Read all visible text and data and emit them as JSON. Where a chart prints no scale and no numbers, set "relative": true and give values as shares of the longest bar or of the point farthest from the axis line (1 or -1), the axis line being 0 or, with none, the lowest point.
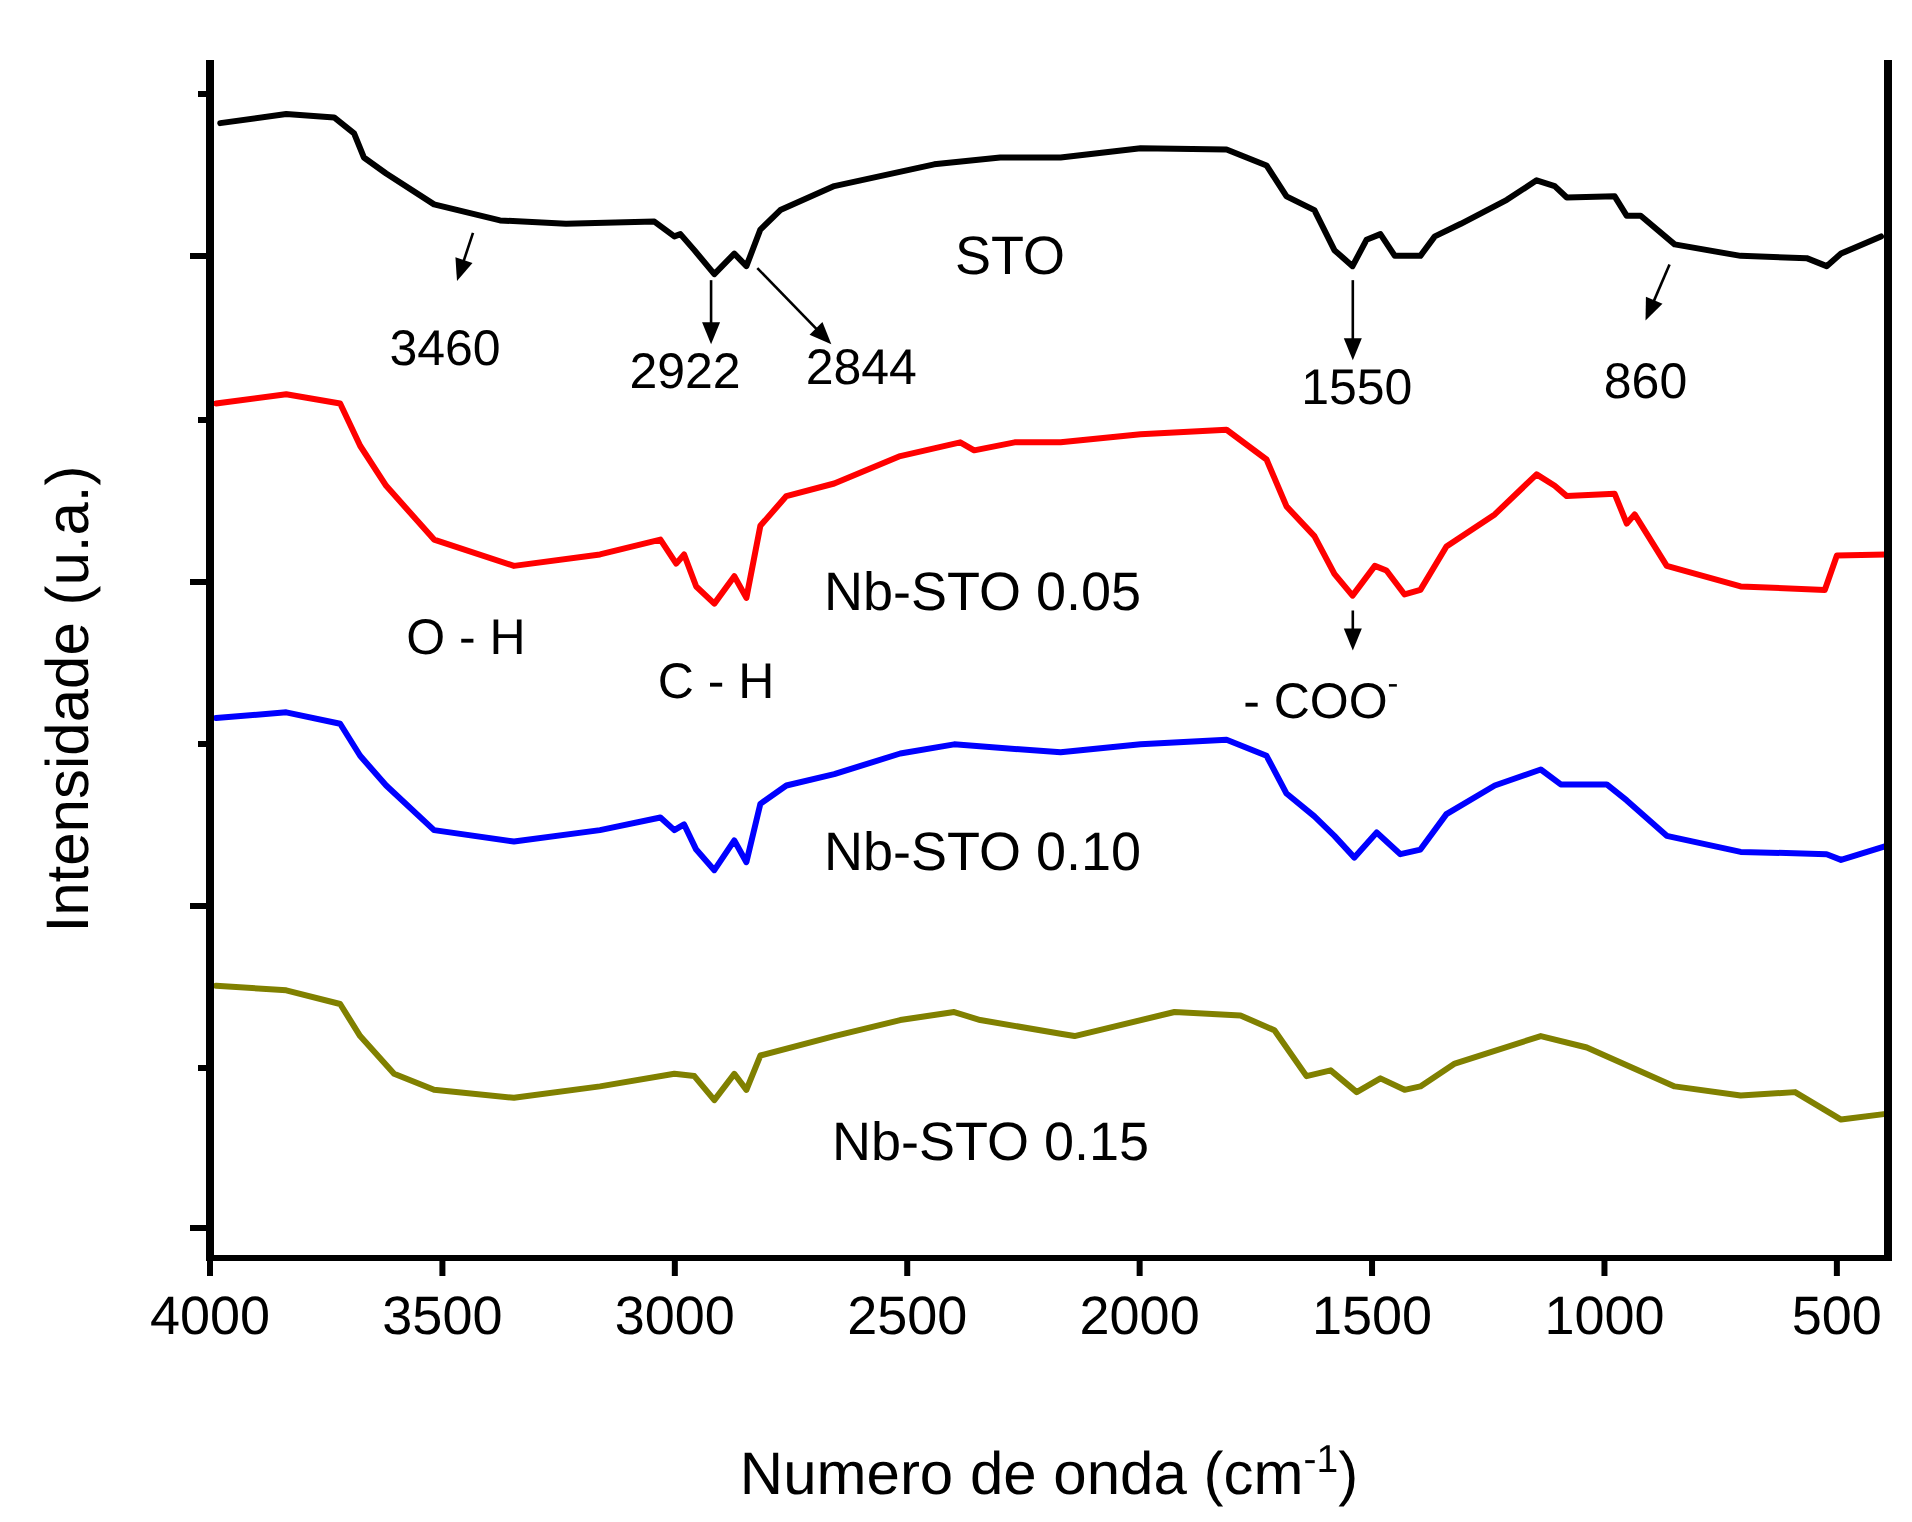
{
  "chart_data": {
    "type": "line",
    "relative": true,
    "xlabel": "Numero de onda (cm$^{-1}$)",
    "ylabel": "Intensidade (u.a.)",
    "xlim": [
      4000,
      390
    ],
    "xticks": [
      4000,
      3500,
      3000,
      2500,
      2000,
      1500,
      1000,
      500
    ],
    "grid": false,
    "marker": "none",
    "line_style": "solid",
    "series": [
      {
        "name": "STO",
        "color": "#000000",
        "x": [
          3978,
          3836,
          3733,
          3690,
          3669,
          3621,
          3518,
          3376,
          3234,
          3044,
          3001,
          2988,
          2958,
          2915,
          2872,
          2846,
          2816,
          2773,
          2657,
          2442,
          2300,
          2170,
          1998,
          1813,
          1727,
          1684,
          1624,
          1581,
          1542,
          1512,
          1482,
          1451,
          1396,
          1365,
          1309,
          1210,
          1146,
          1107,
          1081,
          978,
          952,
          922,
          849,
          707,
          565,
          522,
          491,
          405
        ],
        "values": [
          0.992,
          1.0,
          0.997,
          0.983,
          0.962,
          0.948,
          0.921,
          0.907,
          0.904,
          0.906,
          0.893,
          0.895,
          0.881,
          0.86,
          0.878,
          0.867,
          0.899,
          0.916,
          0.937,
          0.956,
          0.962,
          0.962,
          0.97,
          0.969,
          0.955,
          0.928,
          0.916,
          0.881,
          0.867,
          0.89,
          0.895,
          0.876,
          0.876,
          0.893,
          0.904,
          0.925,
          0.942,
          0.937,
          0.927,
          0.928,
          0.911,
          0.911,
          0.886,
          0.876,
          0.874,
          0.867,
          0.878,
          0.893
        ]
      },
      {
        "name": "Nb-STO 0.05",
        "color": "#ff0000",
        "x": [
          3987,
          3836,
          3720,
          3677,
          3621,
          3518,
          3346,
          3161,
          3031,
          2997,
          2980,
          2954,
          2915,
          2872,
          2846,
          2816,
          2760,
          2657,
          2515,
          2386,
          2356,
          2269,
          2170,
          1998,
          1813,
          1727,
          1684,
          1624,
          1581,
          1542,
          1494,
          1469,
          1430,
          1396,
          1340,
          1236,
          1146,
          1107,
          1081,
          978,
          952,
          935,
          866,
          707,
          526,
          500,
          395
        ],
        "values": [
          0.747,
          0.755,
          0.747,
          0.71,
          0.675,
          0.628,
          0.605,
          0.615,
          0.628,
          0.607,
          0.615,
          0.587,
          0.572,
          0.596,
          0.577,
          0.64,
          0.666,
          0.677,
          0.701,
          0.713,
          0.706,
          0.713,
          0.713,
          0.72,
          0.724,
          0.698,
          0.657,
          0.631,
          0.598,
          0.579,
          0.605,
          0.601,
          0.58,
          0.584,
          0.622,
          0.65,
          0.685,
          0.675,
          0.666,
          0.668,
          0.642,
          0.65,
          0.605,
          0.587,
          0.584,
          0.614,
          0.615
        ]
      },
      {
        "name": "Nb-STO 0.10",
        "color": "#0000ff",
        "x": [
          3987,
          3836,
          3720,
          3677,
          3621,
          3518,
          3346,
          3161,
          3031,
          3001,
          2980,
          2954,
          2915,
          2872,
          2846,
          2816,
          2760,
          2657,
          2515,
          2399,
          2170,
          1998,
          1813,
          1727,
          1684,
          1624,
          1581,
          1538,
          1490,
          1439,
          1396,
          1340,
          1236,
          1137,
          1094,
          995,
          952,
          866,
          707,
          522,
          491,
          395
        ],
        "values": [
          0.472,
          0.477,
          0.467,
          0.439,
          0.413,
          0.374,
          0.364,
          0.374,
          0.385,
          0.374,
          0.379,
          0.357,
          0.339,
          0.365,
          0.346,
          0.397,
          0.413,
          0.423,
          0.441,
          0.449,
          0.442,
          0.449,
          0.453,
          0.439,
          0.406,
          0.386,
          0.369,
          0.35,
          0.372,
          0.353,
          0.357,
          0.388,
          0.413,
          0.427,
          0.414,
          0.414,
          0.4,
          0.369,
          0.355,
          0.353,
          0.348,
          0.36
        ]
      },
      {
        "name": "Nb-STO 0.15",
        "color": "#808000",
        "x": [
          3987,
          3836,
          3720,
          3677,
          3604,
          3518,
          3346,
          3161,
          3001,
          2958,
          2915,
          2872,
          2846,
          2816,
          2657,
          2515,
          2399,
          2343,
          2170,
          2140,
          1925,
          1783,
          1710,
          1641,
          1589,
          1533,
          1482,
          1430,
          1396,
          1322,
          1137,
          1038,
          849,
          707,
          590,
          491,
          395
        ],
        "values": [
          0.238,
          0.234,
          0.222,
          0.194,
          0.161,
          0.147,
          0.14,
          0.15,
          0.161,
          0.159,
          0.138,
          0.161,
          0.147,
          0.177,
          0.194,
          0.208,
          0.215,
          0.208,
          0.196,
          0.194,
          0.215,
          0.212,
          0.199,
          0.159,
          0.164,
          0.145,
          0.157,
          0.147,
          0.15,
          0.17,
          0.194,
          0.184,
          0.15,
          0.142,
          0.145,
          0.121,
          0.126
        ]
      }
    ],
    "annotations": [
      {
        "text": "3460",
        "x": 3460,
        "y": 0.91
      },
      {
        "text": "2922",
        "x": 2922,
        "y": 0.86
      },
      {
        "text": "2844",
        "x": 2844,
        "y": 0.867
      },
      {
        "text": "1550",
        "x": 1550,
        "y": 0.867
      },
      {
        "text": "860",
        "x": 860,
        "y": 0.886
      },
      "O - H",
      "C - H",
      {
        "text": "- COO$^{-}$",
        "x": 1550,
        "y": 0.58
      }
    ]
  }
}
